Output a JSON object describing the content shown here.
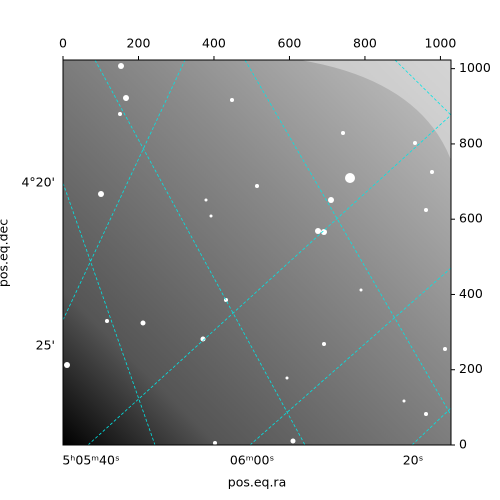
{
  "chart_data": {
    "type": "image",
    "xlabel": "pos.eq.ra",
    "ylabel": "pos.eq.dec",
    "xlim": [
      0,
      1028
    ],
    "ylim": [
      0,
      1023
    ],
    "xticks": [
      0,
      200,
      400,
      600,
      800,
      1000
    ],
    "yticks": [
      0,
      200,
      400,
      600,
      800,
      1000
    ],
    "ra_tick_labels": [
      "5ʰ05ᵐ40ˢ",
      "06ᵐ00ˢ",
      "20ˢ"
    ],
    "dec_tick_labels": [
      "4°20'",
      "25'"
    ]
  }
}
